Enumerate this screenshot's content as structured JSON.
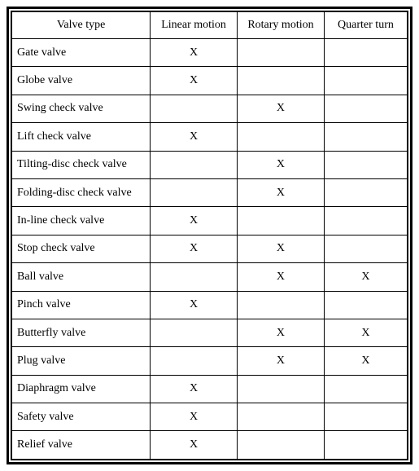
{
  "table": {
    "columns": [
      "Valve type",
      "Linear motion",
      "Rotary motion",
      "Quarter turn"
    ],
    "rows": [
      {
        "name": "Gate valve",
        "linear": "X",
        "rotary": "",
        "quarter": ""
      },
      {
        "name": "Globe valve",
        "linear": "X",
        "rotary": "",
        "quarter": ""
      },
      {
        "name": "Swing check valve",
        "linear": "",
        "rotary": "X",
        "quarter": ""
      },
      {
        "name": "Lift check valve",
        "linear": "X",
        "rotary": "",
        "quarter": ""
      },
      {
        "name": "Tilting-disc check valve",
        "linear": "",
        "rotary": "X",
        "quarter": ""
      },
      {
        "name": "Folding-disc check valve",
        "linear": "",
        "rotary": "X",
        "quarter": ""
      },
      {
        "name": "In-line check valve",
        "linear": "X",
        "rotary": "",
        "quarter": ""
      },
      {
        "name": "Stop check valve",
        "linear": "X",
        "rotary": "X",
        "quarter": ""
      },
      {
        "name": "Ball valve",
        "linear": "",
        "rotary": "X",
        "quarter": "X"
      },
      {
        "name": "Pinch valve",
        "linear": "X",
        "rotary": "",
        "quarter": ""
      },
      {
        "name": "Butterfly valve",
        "linear": "",
        "rotary": "X",
        "quarter": "X"
      },
      {
        "name": "Plug valve",
        "linear": "",
        "rotary": "X",
        "quarter": "X"
      },
      {
        "name": "Diaphragm valve",
        "linear": "X",
        "rotary": "",
        "quarter": ""
      },
      {
        "name": "Safety valve",
        "linear": "X",
        "rotary": "",
        "quarter": ""
      },
      {
        "name": "Relief valve",
        "linear": "X",
        "rotary": "",
        "quarter": ""
      }
    ],
    "border_color": "#000000",
    "background_color": "#ffffff",
    "font_family": "Times New Roman",
    "font_size": 14
  }
}
